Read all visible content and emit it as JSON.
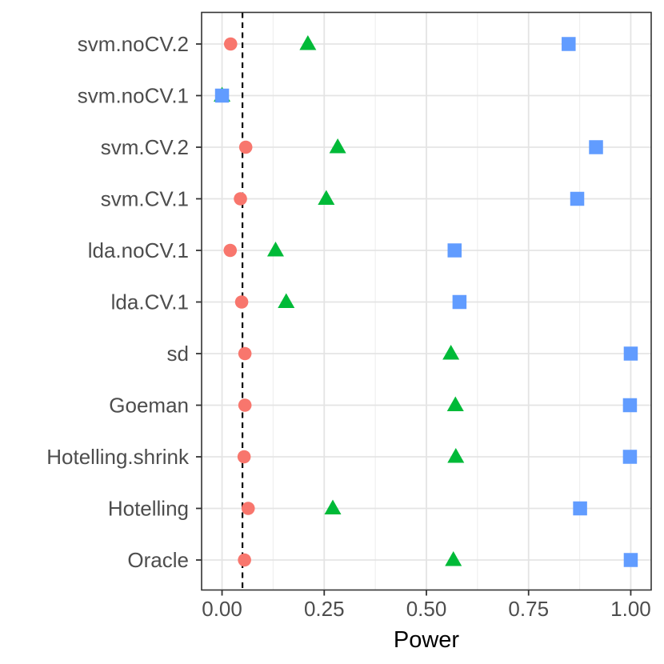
{
  "chart_data": {
    "type": "scatter",
    "title": "",
    "xlabel": "Power",
    "ylabel": "",
    "xlim": [
      -0.05,
      1.05
    ],
    "x_major_ticks": [
      0.0,
      0.25,
      0.5,
      0.75,
      1.0
    ],
    "x_tick_labels": [
      "0.00",
      "0.25",
      "0.50",
      "0.75",
      "1.00"
    ],
    "x_minor_gridlines": [
      0.125,
      0.375,
      0.625,
      0.875
    ],
    "grid": true,
    "legend_position": "none",
    "reference_line": {
      "x": 0.05,
      "style": "dashed",
      "color": "#000000"
    },
    "categories": [
      "svm.noCV.2",
      "svm.noCV.1",
      "svm.CV.2",
      "svm.CV.1",
      "lda.noCV.1",
      "lda.CV.1",
      "sd",
      "Goeman",
      "Hotelling.shrink",
      "Hotelling",
      "Oracle"
    ],
    "series": [
      {
        "name": "circle-series",
        "marker": "circle",
        "color": "#F8766D",
        "values": [
          0.021,
          0.0,
          0.058,
          0.045,
          0.02,
          0.048,
          0.056,
          0.056,
          0.054,
          0.064,
          0.055
        ]
      },
      {
        "name": "triangle-series",
        "marker": "triangle",
        "color": "#00BA38",
        "values": [
          0.21,
          0.0,
          0.283,
          0.255,
          0.131,
          0.157,
          0.56,
          0.571,
          0.572,
          0.271,
          0.566
        ]
      },
      {
        "name": "square-series",
        "marker": "square",
        "color": "#619CFF",
        "values": [
          0.848,
          0.0,
          0.915,
          0.869,
          0.569,
          0.581,
          1.0,
          0.998,
          0.998,
          0.876,
          1.0
        ]
      }
    ],
    "style": {
      "panel_border_color": "#333333",
      "major_grid_color": "#e4e4e4",
      "minor_grid_color": "#efefef",
      "tick_color": "#333333",
      "axis_text_color": "#4d4d4d"
    }
  }
}
